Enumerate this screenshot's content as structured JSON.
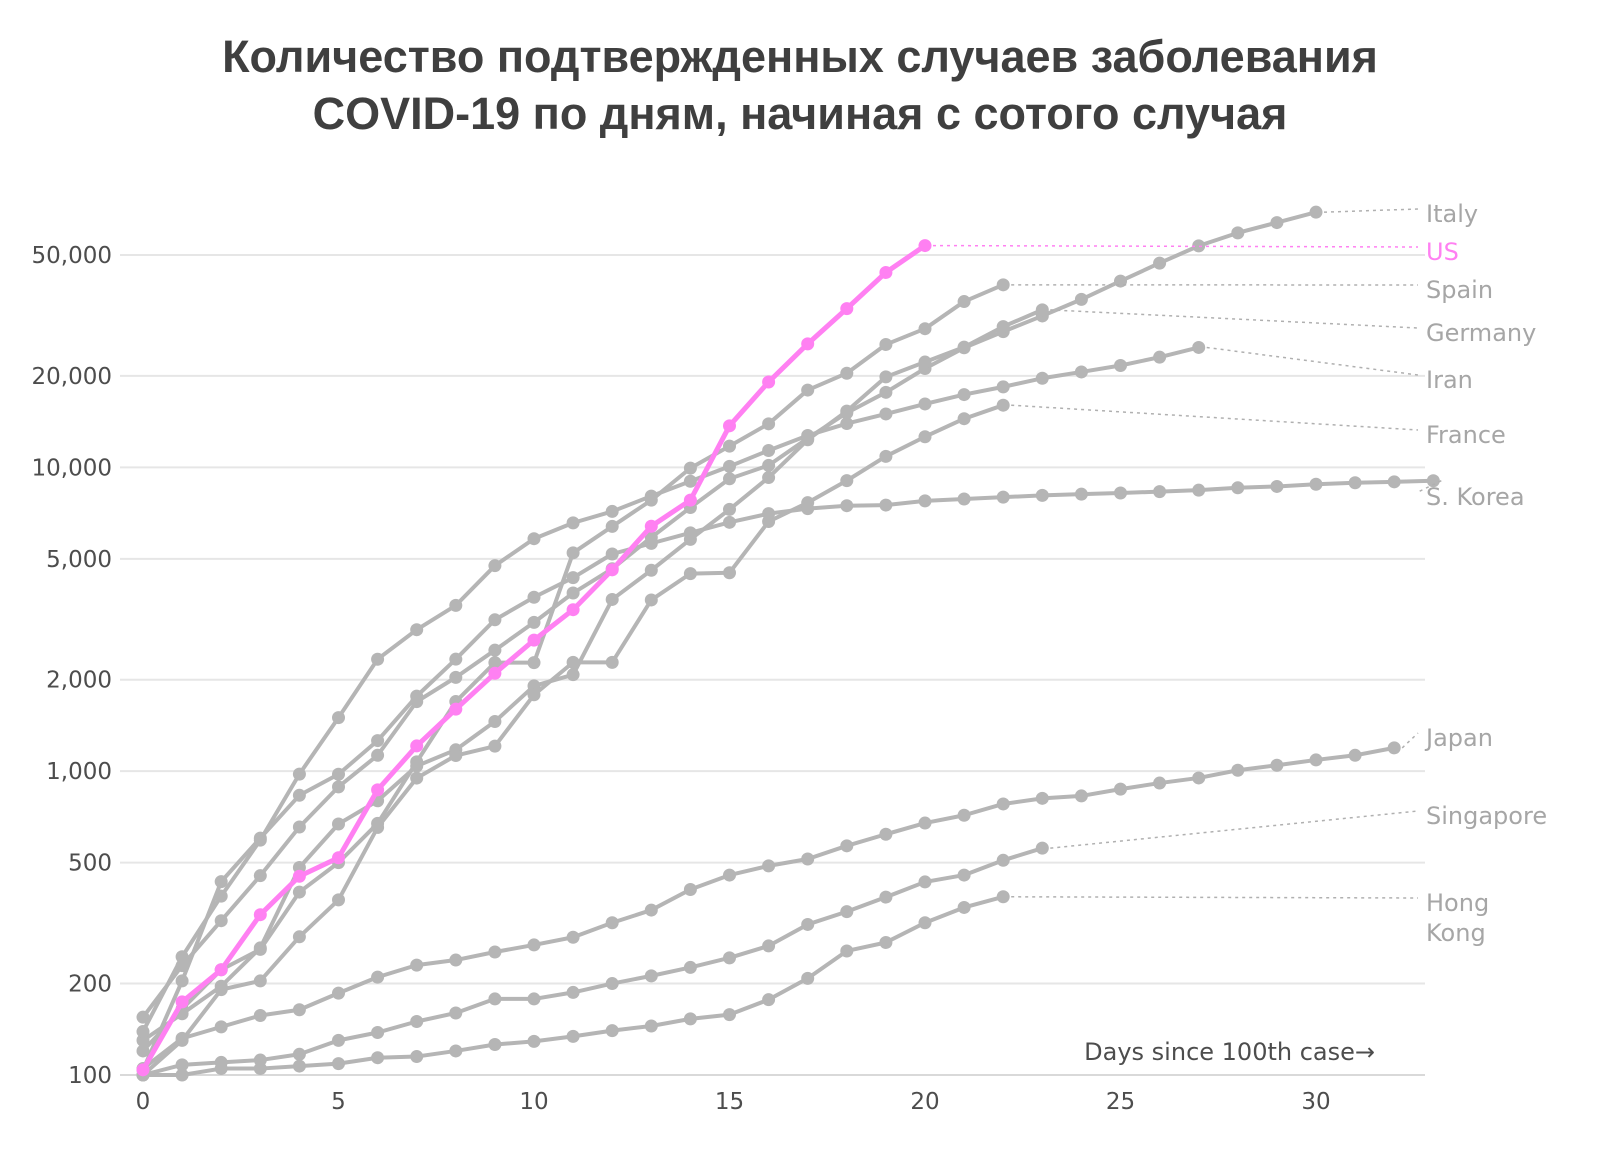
{
  "title": {
    "line1": "Количество подтвержденных случаев заболевания",
    "line2": "COVID-19 по дням, начиная с сотого случая"
  },
  "colors": {
    "grey": "#b5b5b5",
    "label_grey": "#a6a6a6",
    "highlight": "#ff80f2",
    "grid": "#e6e6e6"
  },
  "chart_data": {
    "type": "line",
    "title": "Количество подтвержденных случаев заболевания COVID-19 по дням, начиная с сотого случая",
    "xlabel": "Days since 100th case→",
    "ylabel": "",
    "yscale": "log",
    "xlim": [
      0,
      33
    ],
    "ylim": [
      100,
      70000
    ],
    "x_ticks": [
      {
        "value": 0,
        "label": "0"
      },
      {
        "value": 5,
        "label": "5"
      },
      {
        "value": 10,
        "label": "10"
      },
      {
        "value": 15,
        "label": "15"
      },
      {
        "value": 20,
        "label": "20"
      },
      {
        "value": 25,
        "label": "25"
      },
      {
        "value": 30,
        "label": "30"
      }
    ],
    "y_ticks": [
      {
        "value": 100,
        "label": "100"
      },
      {
        "value": 200,
        "label": "200"
      },
      {
        "value": 500,
        "label": "500"
      },
      {
        "value": 1000,
        "label": "1,000"
      },
      {
        "value": 2000,
        "label": "2,000"
      },
      {
        "value": 5000,
        "label": "5,000"
      },
      {
        "value": 10000,
        "label": "10,000"
      },
      {
        "value": 20000,
        "label": "20,000"
      },
      {
        "value": 50000,
        "label": "50,000"
      }
    ],
    "grid": true,
    "series": [
      {
        "name": "Italy",
        "highlight": false,
        "label_value": 64000,
        "values": [
          155,
          229,
          322,
          453,
          655,
          888,
          1128,
          1694,
          2036,
          2502,
          3089,
          3858,
          4636,
          5883,
          7375,
          9172,
          10149,
          12462,
          15113,
          17660,
          21157,
          24747,
          27980,
          31506,
          35713,
          41035,
          47021,
          53578,
          59138,
          63927,
          69176
        ]
      },
      {
        "name": "US",
        "highlight": true,
        "label_value": 51000,
        "values": [
          104,
          174,
          222,
          337,
          451,
          519,
          868,
          1211,
          1600,
          2100,
          2700,
          3400,
          4600,
          6400,
          7800,
          13700,
          19100,
          25500,
          33300,
          43800,
          53700
        ]
      },
      {
        "name": "Spain",
        "highlight": false,
        "label_value": 38000,
        "values": [
          120,
          165,
          222,
          259,
          400,
          500,
          673,
          1073,
          1695,
          2277,
          2277,
          5232,
          6391,
          7798,
          9942,
          11748,
          13910,
          17963,
          20410,
          25374,
          28603,
          35136,
          39885
        ]
      },
      {
        "name": "Germany",
        "highlight": false,
        "label_value": 27000,
        "values": [
          130,
          159,
          196,
          262,
          482,
          670,
          799,
          1040,
          1176,
          1457,
          1908,
          2078,
          3675,
          4585,
          5795,
          7272,
          9257,
          12327,
          15320,
          19848,
          22213,
          24873,
          29056,
          32986
        ]
      },
      {
        "name": "Iran",
        "highlight": false,
        "label_value": 19500,
        "values": [
          139,
          245,
          388,
          593,
          978,
          1501,
          2336,
          2922,
          3513,
          4747,
          5823,
          6566,
          7161,
          8042,
          9000,
          10075,
          11364,
          12729,
          13938,
          14991,
          16169,
          17361,
          18407,
          19644,
          20610,
          21638,
          23049,
          24811
        ]
      },
      {
        "name": "France",
        "highlight": false,
        "label_value": 12500,
        "values": [
          100,
          130,
          191,
          204,
          285,
          377,
          653,
          949,
          1126,
          1209,
          1784,
          2281,
          2281,
          3661,
          4469,
          4499,
          6633,
          7652,
          9043,
          10871,
          12612,
          14459,
          16018
        ]
      },
      {
        "name": "S. Korea",
        "highlight": false,
        "label_value": 8500,
        "values": [
          104,
          204,
          433,
          602,
          833,
          977,
          1261,
          1766,
          2337,
          3150,
          3736,
          4335,
          5186,
          5621,
          6088,
          6593,
          7041,
          7314,
          7478,
          7513,
          7755,
          7869,
          7979,
          8086,
          8162,
          8236,
          8320,
          8413,
          8565,
          8652,
          8799,
          8897,
          8961,
          9037
        ]
      },
      {
        "name": "Japan",
        "highlight": false,
        "label_value": 1150,
        "values": [
          105,
          132,
          144,
          157,
          164,
          186,
          210,
          230,
          239,
          254,
          268,
          284,
          317,
          349,
          408,
          455,
          488,
          514,
          568,
          620,
          675,
          716,
          780,
          814,
          829,
          873,
          914,
          950,
          1007,
          1046,
          1089,
          1128,
          1193
        ]
      },
      {
        "name": "Singapore",
        "highlight": false,
        "label_value": 650,
        "values": [
          100,
          108,
          110,
          112,
          117,
          130,
          138,
          150,
          160,
          178,
          178,
          187,
          200,
          212,
          226,
          243,
          266,
          313,
          345,
          385,
          432,
          455,
          509,
          558
        ]
      },
      {
        "name": "Hong Kong",
        "highlight": false,
        "label_value": 340,
        "values": [
          100,
          100,
          105,
          105,
          107,
          109,
          114,
          115,
          120,
          126,
          129,
          134,
          140,
          145,
          153,
          158,
          177,
          208,
          256,
          273,
          317,
          356,
          386
        ]
      }
    ]
  }
}
